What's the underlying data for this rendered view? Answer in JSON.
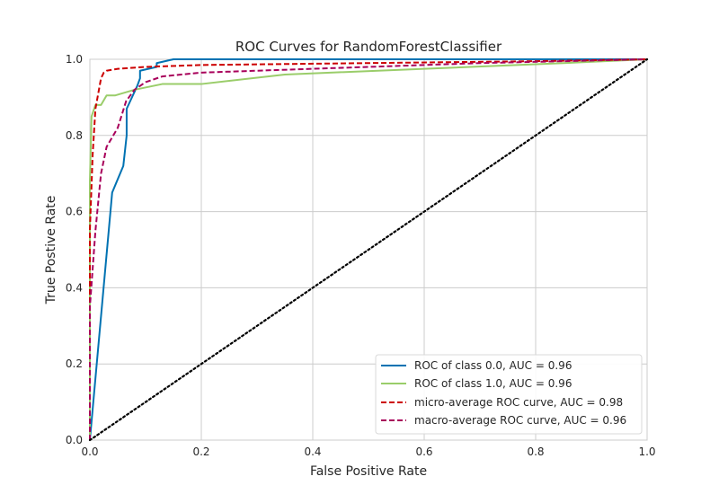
{
  "chart_data": {
    "type": "line",
    "title": "ROC Curves for RandomForestClassifier",
    "xlabel": "False Positive Rate",
    "ylabel": "True Postive Rate",
    "xlim": [
      0.0,
      1.0
    ],
    "ylim": [
      0.0,
      1.0
    ],
    "x_ticks": [
      "0.0",
      "0.2",
      "0.4",
      "0.6",
      "0.8",
      "1.0"
    ],
    "y_ticks": [
      "0.0",
      "0.2",
      "0.4",
      "0.6",
      "0.8",
      "1.0"
    ],
    "grid": true,
    "legend_position": "lower-right",
    "series": [
      {
        "name": "ROC of class 0.0, AUC = 0.96",
        "color": "#0072B2",
        "style": "solid",
        "x": [
          0.0,
          0.04,
          0.06,
          0.066,
          0.066,
          0.085,
          0.09,
          0.09,
          0.12,
          0.12,
          0.15,
          1.0
        ],
        "y": [
          0.0,
          0.65,
          0.72,
          0.8,
          0.87,
          0.93,
          0.95,
          0.97,
          0.98,
          0.99,
          1.0,
          1.0
        ]
      },
      {
        "name": "ROC of class 1.0, AUC = 0.96",
        "color": "#9ACD6A",
        "style": "solid",
        "x": [
          0.0,
          0.0,
          0.003,
          0.01,
          0.02,
          0.03,
          0.045,
          0.08,
          0.13,
          0.2,
          0.35,
          0.6,
          0.85,
          1.0
        ],
        "y": [
          0.0,
          0.68,
          0.85,
          0.88,
          0.88,
          0.905,
          0.905,
          0.92,
          0.935,
          0.935,
          0.96,
          0.975,
          0.99,
          1.0
        ]
      },
      {
        "name": "micro-average ROC curve, AUC = 0.98",
        "color": "#CC0000",
        "style": "dashed",
        "x": [
          0.0,
          0.0,
          0.005,
          0.01,
          0.015,
          0.02,
          0.025,
          0.03,
          0.05,
          0.1,
          0.2,
          0.5,
          0.8,
          1.0
        ],
        "y": [
          0.0,
          0.55,
          0.75,
          0.87,
          0.91,
          0.95,
          0.965,
          0.97,
          0.975,
          0.98,
          0.985,
          0.99,
          0.995,
          1.0
        ]
      },
      {
        "name": "macro-average ROC curve, AUC = 0.96",
        "color": "#A8005A",
        "style": "dashed",
        "x": [
          0.0,
          0.0,
          0.005,
          0.01,
          0.02,
          0.03,
          0.05,
          0.065,
          0.08,
          0.1,
          0.13,
          0.2,
          0.4,
          0.7,
          1.0
        ],
        "y": [
          0.0,
          0.35,
          0.45,
          0.55,
          0.7,
          0.77,
          0.82,
          0.89,
          0.92,
          0.94,
          0.955,
          0.965,
          0.975,
          0.99,
          1.0
        ]
      },
      {
        "name": "",
        "color": "#000000",
        "style": "dotted",
        "x": [
          0.0,
          1.0
        ],
        "y": [
          0.0,
          1.0
        ]
      }
    ]
  }
}
